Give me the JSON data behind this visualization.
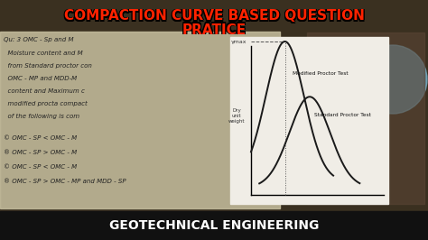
{
  "title_line1": "COMPACTION CURVE BASED QUESTION",
  "title_line2": "PRATICE",
  "subtitle": "GEOTECHNICAL ENGINEERING",
  "modified_label": "Modified Proctor Test",
  "standard_label": "Standard Proctor Test",
  "ylabel": "Dry\nunit\nweight",
  "omc_label": "γmax",
  "bg_color": "#3a3020",
  "title_color": "#ff2200",
  "title_stroke": "#000000",
  "curve_color": "#1a1a1a",
  "chart_bg": "#e8e5dc",
  "dashed_color": "#555555",
  "bottom_bar_color": "#111111",
  "subtitle_color": "#ffffff",
  "note_bg": "#c8c0a0",
  "note_text_color": "#222222",
  "blue_circle_color": "#7ab8d4"
}
